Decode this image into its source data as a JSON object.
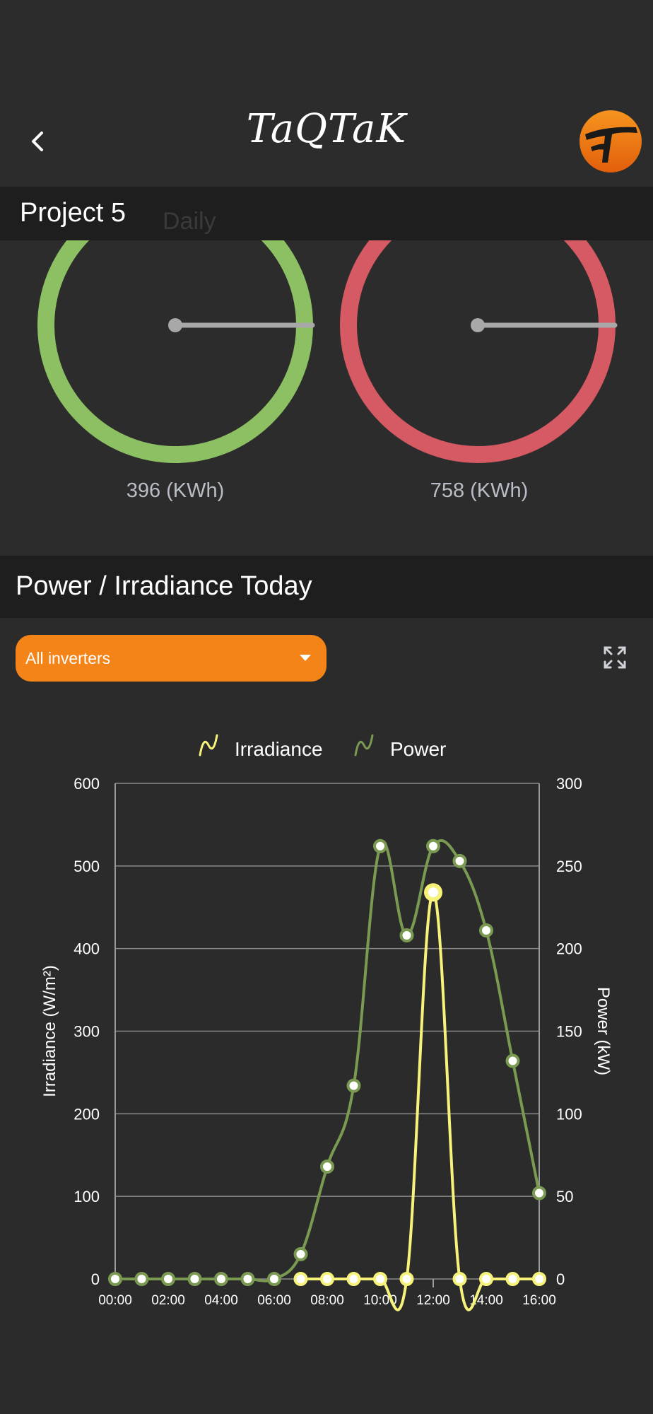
{
  "header": {
    "title": "TaQTaK",
    "back_icon": "chevron-left-icon",
    "logo_icon": "taqtak-logo-icon"
  },
  "project": {
    "name": "Project 5",
    "ghost_label": "Daily"
  },
  "gauges": [
    {
      "value_label": "396 (KWh)",
      "color": "#8cc063",
      "fraction": 0.75
    },
    {
      "value_label": "758 (KWh)",
      "color": "#d65a63",
      "fraction": 0.75
    }
  ],
  "section": {
    "title": "Power / Irradiance Today"
  },
  "filter": {
    "selected": "All inverters"
  },
  "fullscreen_icon": "expand-icon",
  "chart_data": {
    "type": "line",
    "legend": {
      "position": "top-center"
    },
    "grid": true,
    "categories": [
      "00:00",
      "01:00",
      "02:00",
      "03:00",
      "04:00",
      "05:00",
      "06:00",
      "07:00",
      "08:00",
      "09:00",
      "10:00",
      "11:00",
      "12:00",
      "13:00",
      "14:00",
      "15:00",
      "16:00"
    ],
    "tick_labels": [
      "00:00",
      "02:00",
      "04:00",
      "06:00",
      "08:00",
      "10:00",
      "12:00",
      "14:00",
      "16:00"
    ],
    "y_left": {
      "label": "Irradiance (W/m²)",
      "ylim": [
        0,
        600
      ],
      "ticks": [
        "0",
        "100",
        "200",
        "300",
        "400",
        "500",
        "600"
      ]
    },
    "y_right": {
      "label": "Power (kW)",
      "ylim": [
        0,
        300
      ],
      "ticks": [
        "0",
        "50",
        "100",
        "150",
        "200",
        "250",
        "300"
      ]
    },
    "series": [
      {
        "name": "Irradiance",
        "axis": "left",
        "color": "#f7f27a",
        "values": [
          null,
          null,
          null,
          null,
          null,
          null,
          null,
          0,
          0,
          0,
          0,
          0,
          468,
          0,
          0,
          0,
          0
        ]
      },
      {
        "name": "Power",
        "axis": "right",
        "color": "#7a9a52",
        "values": [
          0,
          0,
          0,
          0,
          0,
          0,
          0,
          15,
          68,
          117,
          262,
          208,
          262,
          253,
          211,
          132,
          52
        ]
      }
    ]
  }
}
